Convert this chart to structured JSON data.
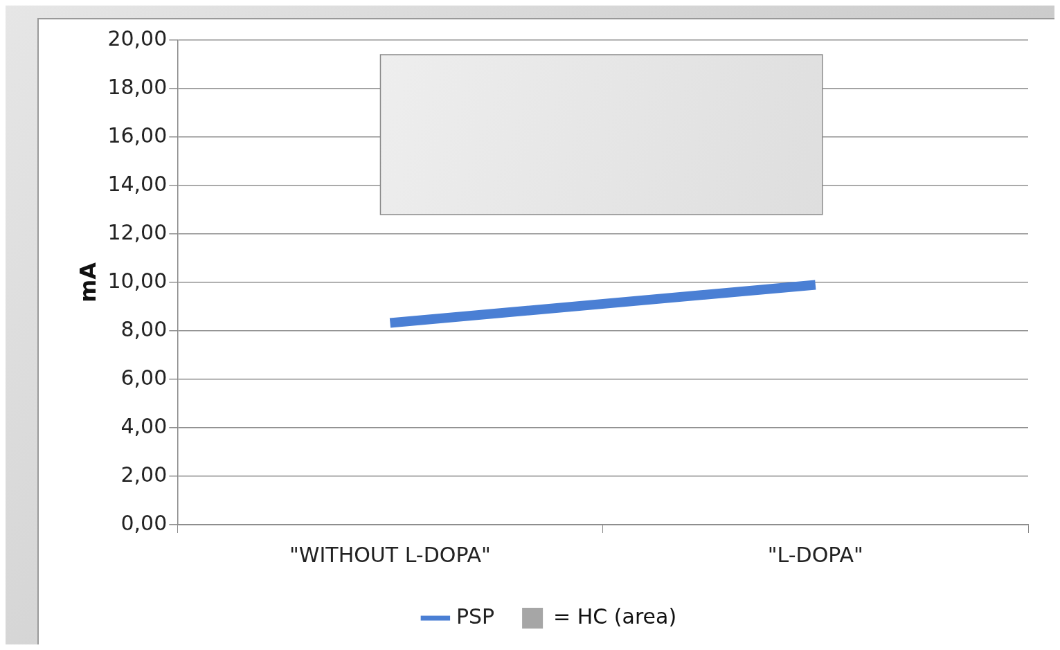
{
  "chart_data": {
    "type": "line",
    "ylabel": "mA",
    "categories": [
      "\"WITHOUT L-DOPA\"",
      "\"L-DOPA\""
    ],
    "series": [
      {
        "name": "PSP",
        "color": "#4a7fd4",
        "values": [
          8.33,
          9.9
        ]
      }
    ],
    "bands": [
      {
        "axis": "y",
        "from": 12.8,
        "to": 19.4,
        "label": "= HC (area)",
        "color": "#dedede"
      }
    ],
    "ylim": [
      0,
      20
    ],
    "yticks": [
      {
        "value": 0,
        "label": "0,00"
      },
      {
        "value": 2,
        "label": "2,00"
      },
      {
        "value": 4,
        "label": "4,00"
      },
      {
        "value": 6,
        "label": "6,00"
      },
      {
        "value": 8,
        "label": "8,00"
      },
      {
        "value": 10,
        "label": "10,00"
      },
      {
        "value": 12,
        "label": "12,00"
      },
      {
        "value": 14,
        "label": "14,00"
      },
      {
        "value": 16,
        "label": "16,00"
      },
      {
        "value": 18,
        "label": "18,00"
      },
      {
        "value": 20,
        "label": "20,00"
      }
    ],
    "grid": "y",
    "legend": "bottom",
    "marker": "none",
    "line_style": "solid"
  }
}
